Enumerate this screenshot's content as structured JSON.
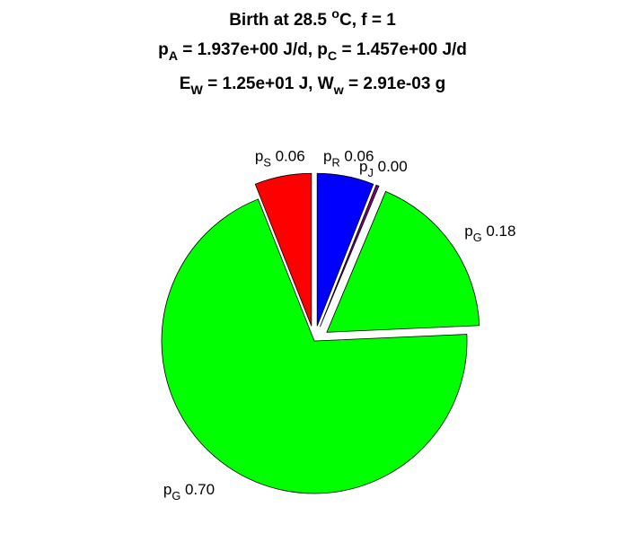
{
  "chart_data": {
    "type": "pie",
    "title": [
      [
        "Birth at 28.5 ",
        {
          "sup": "o"
        },
        "C, f = 1"
      ],
      [
        "p",
        {
          "sub": "A"
        },
        " = 1.937e+00 J/d, p",
        {
          "sub": "C"
        },
        " = 1.457e+00 J/d"
      ],
      [
        "E",
        {
          "sub": "W"
        },
        " = 1.25e+01 J, W",
        {
          "sub": "w"
        },
        " = 2.91e-03 g"
      ]
    ],
    "categories": [
      [
        "p",
        {
          "sub": "R"
        }
      ],
      [
        "p",
        {
          "sub": "J"
        }
      ],
      [
        "p",
        {
          "sub": "G"
        }
      ],
      [
        "p",
        {
          "sub": "G"
        }
      ],
      [
        "p",
        {
          "sub": "S"
        }
      ]
    ],
    "values": [
      0.06,
      0.003,
      0.18,
      0.697,
      0.06
    ],
    "value_labels": [
      "0.06",
      "0.00",
      "0.18",
      "0.70",
      "0.06"
    ],
    "colors": [
      "#0000ff",
      "#800080",
      "#00ff00",
      "#00ff00",
      "#ff0000"
    ],
    "explode": [
      true,
      true,
      true,
      false,
      true
    ]
  }
}
